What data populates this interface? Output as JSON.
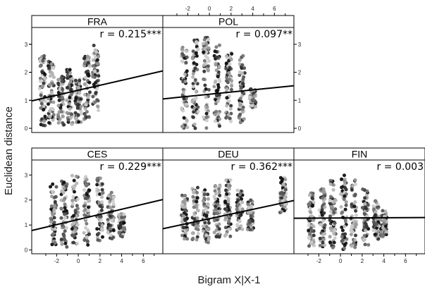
{
  "chart_data": {
    "type": "scatter",
    "xlabel": "Bigram X|X-1",
    "ylabel": "Euclidean distance",
    "xlim": [
      -4.3,
      7.8
    ],
    "ylim": [
      -0.15,
      3.6
    ],
    "x_ticks": [
      -2,
      0,
      2,
      4,
      6
    ],
    "x_tick_labels": [
      "-2",
      "0",
      "2",
      "4",
      "6"
    ],
    "y_ticks": [
      0,
      1,
      2,
      3
    ],
    "y_tick_labels": [
      "0",
      "1",
      "2",
      "3"
    ],
    "grid": false,
    "panels": [
      {
        "name": "FRA",
        "r_label": "r = 0.215***",
        "fit": {
          "x": [
            -4.3,
            7.8
          ],
          "y": [
            0.98,
            2.05
          ]
        },
        "clusters": [
          {
            "x": -3.3,
            "ymin": 0.1,
            "ymax": 2.7
          },
          {
            "x": -2.5,
            "ymin": 0.1,
            "ymax": 2.4
          },
          {
            "x": -1.6,
            "ymin": 0.1,
            "ymax": 1.9
          },
          {
            "x": -0.8,
            "ymin": 0.1,
            "ymax": 2.1
          },
          {
            "x": 0.0,
            "ymin": 0.2,
            "ymax": 1.8
          },
          {
            "x": 0.8,
            "ymin": 0.3,
            "ymax": 2.6
          },
          {
            "x": 1.6,
            "ymin": 0.6,
            "ymax": 3.0
          }
        ]
      },
      {
        "name": "POL",
        "r_label": "r = 0.097**",
        "fit": {
          "x": [
            -4.3,
            7.8
          ],
          "y": [
            1.05,
            1.52
          ]
        },
        "clusters": [
          {
            "x": -2.3,
            "ymin": 0.0,
            "ymax": 2.9
          },
          {
            "x": -1.3,
            "ymin": 0.0,
            "ymax": 3.2
          },
          {
            "x": -0.3,
            "ymin": 0.0,
            "ymax": 3.3
          },
          {
            "x": 0.7,
            "ymin": 0.0,
            "ymax": 3.0
          },
          {
            "x": 1.8,
            "ymin": 0.1,
            "ymax": 2.8
          },
          {
            "x": 3.0,
            "ymin": 0.2,
            "ymax": 2.6
          },
          {
            "x": 4.0,
            "ymin": 0.7,
            "ymax": 1.4
          }
        ]
      },
      {
        "name": "CES",
        "r_label": "r = 0.229***",
        "fit": {
          "x": [
            -4.3,
            7.8
          ],
          "y": [
            0.78,
            2.02
          ]
        },
        "clusters": [
          {
            "x": -2.3,
            "ymin": 0.1,
            "ymax": 2.7
          },
          {
            "x": -1.3,
            "ymin": 0.1,
            "ymax": 2.8
          },
          {
            "x": -0.3,
            "ymin": 0.2,
            "ymax": 3.0
          },
          {
            "x": 0.8,
            "ymin": 0.2,
            "ymax": 3.0
          },
          {
            "x": 2.0,
            "ymin": 0.3,
            "ymax": 2.9
          },
          {
            "x": 3.0,
            "ymin": 0.4,
            "ymax": 2.3
          },
          {
            "x": 4.0,
            "ymin": 0.5,
            "ymax": 1.5
          }
        ]
      },
      {
        "name": "DEU",
        "r_label": "r = 0.362***",
        "fit": {
          "x": [
            -4.3,
            7.8
          ],
          "y": [
            0.85,
            1.98
          ]
        },
        "clusters": [
          {
            "x": -2.3,
            "ymin": 0.4,
            "ymax": 2.3
          },
          {
            "x": -1.3,
            "ymin": 0.4,
            "ymax": 2.5
          },
          {
            "x": -0.3,
            "ymin": 0.3,
            "ymax": 2.4
          },
          {
            "x": 0.7,
            "ymin": 0.4,
            "ymax": 2.6
          },
          {
            "x": 1.7,
            "ymin": 0.5,
            "ymax": 2.8
          },
          {
            "x": 2.8,
            "ymin": 0.8,
            "ymax": 2.4
          },
          {
            "x": 3.8,
            "ymin": 0.8,
            "ymax": 2.0
          },
          {
            "x": 6.8,
            "ymin": 1.5,
            "ymax": 2.9
          }
        ]
      },
      {
        "name": "FIN",
        "r_label": "r = 0.003",
        "fit": {
          "x": [
            -4.3,
            7.8
          ],
          "y": [
            1.27,
            1.3
          ]
        },
        "clusters": [
          {
            "x": -2.7,
            "ymin": 0.1,
            "ymax": 2.3
          },
          {
            "x": -1.7,
            "ymin": 0.0,
            "ymax": 2.5
          },
          {
            "x": -0.7,
            "ymin": 0.0,
            "ymax": 2.8
          },
          {
            "x": 0.3,
            "ymin": 0.0,
            "ymax": 3.0
          },
          {
            "x": 1.2,
            "ymin": 0.1,
            "ymax": 2.8
          },
          {
            "x": 2.3,
            "ymin": 0.2,
            "ymax": 2.5
          },
          {
            "x": 3.3,
            "ymin": 0.4,
            "ymax": 2.0
          },
          {
            "x": 4.0,
            "ymin": 0.5,
            "ymax": 1.6
          }
        ]
      }
    ]
  },
  "colors": {
    "frame": "#000000",
    "strip_fill": "#ffffff",
    "fit_line": "#000000",
    "point_grays": [
      "#111111",
      "#333333",
      "#555555",
      "#777777",
      "#999999",
      "#b5b5b5",
      "#cccccc"
    ]
  }
}
